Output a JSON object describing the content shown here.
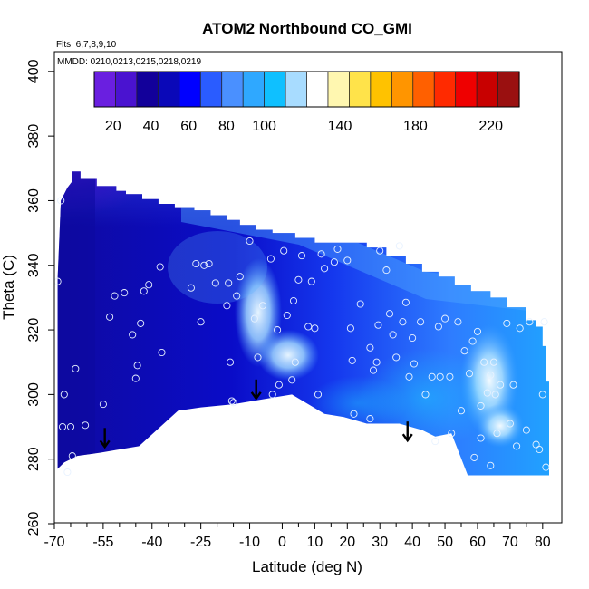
{
  "chart_data": {
    "type": "heatmap",
    "title": "ATOM2 Northbound CO_GMI",
    "flights_label": "Flts: 6,7,8,9,10",
    "dates_label": "MMDD: 0210,0213,0215,0218,0219",
    "xlabel": "Latitude (deg N)",
    "ylabel": "Theta (C)",
    "xlim": [
      -70,
      82
    ],
    "ylim": [
      260,
      405
    ],
    "x_ticks": [
      -70,
      -55,
      -40,
      -25,
      -10,
      0,
      10,
      20,
      30,
      40,
      50,
      60,
      70,
      80
    ],
    "x_ticks_minor": [
      -65,
      -60,
      -50,
      -45,
      -35,
      -30,
      -20,
      -15,
      -5,
      5,
      15,
      25,
      35,
      45,
      55,
      65,
      75
    ],
    "y_ticks": [
      260,
      280,
      300,
      320,
      340,
      360,
      380,
      400
    ],
    "colorbar": {
      "range": [
        10,
        235
      ],
      "ticks": [
        20,
        40,
        60,
        80,
        100,
        140,
        180,
        220
      ],
      "colors": [
        "#6a1fe0",
        "#4a13d0",
        "#12009a",
        "#0a08b8",
        "#0000ff",
        "#2a5cff",
        "#4a90ff",
        "#2fa8ff",
        "#0fc0ff",
        "#a8dcff",
        "#ffffff",
        "#fff7b0",
        "#ffe34a",
        "#ffc200",
        "#ff9500",
        "#ff6000",
        "#ff2a00",
        "#ef0000",
        "#c80000",
        "#9a1010"
      ]
    },
    "arrows": [
      {
        "lat": -54.5,
        "theta": 286
      },
      {
        "lat": -8,
        "theta": 301
      },
      {
        "lat": 38.5,
        "theta": 288
      }
    ],
    "flight_points": [
      [
        -69,
        335
      ],
      [
        -68,
        360
      ],
      [
        -67.5,
        290
      ],
      [
        -67,
        300
      ],
      [
        -66,
        276
      ],
      [
        -65,
        290
      ],
      [
        -64.5,
        281
      ],
      [
        -63.5,
        308
      ],
      [
        -60.5,
        290.5
      ],
      [
        -55,
        297
      ],
      [
        -53,
        324
      ],
      [
        -51.5,
        330.5
      ],
      [
        -48.5,
        331.5
      ],
      [
        -46,
        318.5
      ],
      [
        -45,
        305
      ],
      [
        -44.5,
        309
      ],
      [
        -43.5,
        322
      ],
      [
        -42.5,
        332
      ],
      [
        -41,
        334
      ],
      [
        -37.5,
        339.5
      ],
      [
        -37,
        313
      ],
      [
        -28,
        333
      ],
      [
        -26.5,
        340.5
      ],
      [
        -25,
        322.5
      ],
      [
        -24,
        340
      ],
      [
        -22.5,
        340.5
      ],
      [
        -20.5,
        334.5
      ],
      [
        -17,
        327.5
      ],
      [
        -16.5,
        334.5
      ],
      [
        -16,
        310
      ],
      [
        -15.5,
        298
      ],
      [
        -15,
        297.5
      ],
      [
        -14,
        330.5
      ],
      [
        -13,
        336.5
      ],
      [
        -10,
        347.5
      ],
      [
        -8.5,
        323.5
      ],
      [
        -7.5,
        311.5
      ],
      [
        -6,
        327.5
      ],
      [
        -3.5,
        342
      ],
      [
        -3,
        300
      ],
      [
        -1.5,
        320
      ],
      [
        -1,
        303
      ],
      [
        0.5,
        344.5
      ],
      [
        1.5,
        324.5
      ],
      [
        3,
        304.5
      ],
      [
        3.5,
        329
      ],
      [
        4,
        310
      ],
      [
        5,
        335.5
      ],
      [
        6,
        343
      ],
      [
        8,
        321
      ],
      [
        9,
        335
      ],
      [
        10,
        320.5
      ],
      [
        11,
        300
      ],
      [
        12,
        343.5
      ],
      [
        13,
        339
      ],
      [
        16,
        341
      ],
      [
        17,
        345
      ],
      [
        20,
        341.5
      ],
      [
        21,
        320.5
      ],
      [
        21.5,
        310.5
      ],
      [
        22,
        294
      ],
      [
        24,
        328
      ],
      [
        27,
        292.5
      ],
      [
        27,
        314.5
      ],
      [
        28,
        307.5
      ],
      [
        29,
        310
      ],
      [
        29.5,
        321.5
      ],
      [
        30,
        344.5
      ],
      [
        32,
        338.5
      ],
      [
        33,
        325
      ],
      [
        34,
        318.5
      ],
      [
        35,
        311.5
      ],
      [
        36,
        346
      ],
      [
        37,
        322.5
      ],
      [
        38,
        328.5
      ],
      [
        39,
        305.5
      ],
      [
        40,
        317.5
      ],
      [
        40.5,
        309.5
      ],
      [
        42.5,
        322.5
      ],
      [
        44,
        300
      ],
      [
        46,
        305.5
      ],
      [
        47,
        285.5
      ],
      [
        48,
        321
      ],
      [
        48.5,
        305.5
      ],
      [
        50,
        323.5
      ],
      [
        51.5,
        305.5
      ],
      [
        52,
        288
      ],
      [
        54,
        322.5
      ],
      [
        55,
        295
      ],
      [
        56,
        313.5
      ],
      [
        57.5,
        306.5
      ],
      [
        58.5,
        316.5
      ],
      [
        59,
        280.5
      ],
      [
        60,
        319.5
      ],
      [
        61,
        286.5
      ],
      [
        61,
        296.5
      ],
      [
        62,
        310
      ],
      [
        63,
        300.5
      ],
      [
        64,
        306
      ],
      [
        64,
        278
      ],
      [
        65,
        310
      ],
      [
        65.5,
        300
      ],
      [
        66,
        288
      ],
      [
        67,
        303
      ],
      [
        69,
        322
      ],
      [
        70,
        291
      ],
      [
        71,
        303
      ],
      [
        72,
        284
      ],
      [
        73,
        320.5
      ],
      [
        75,
        289
      ],
      [
        76,
        322.5
      ],
      [
        78,
        284.5
      ],
      [
        79,
        283
      ],
      [
        80,
        300
      ],
      [
        80.5,
        322.5
      ],
      [
        81,
        277.5
      ]
    ]
  }
}
